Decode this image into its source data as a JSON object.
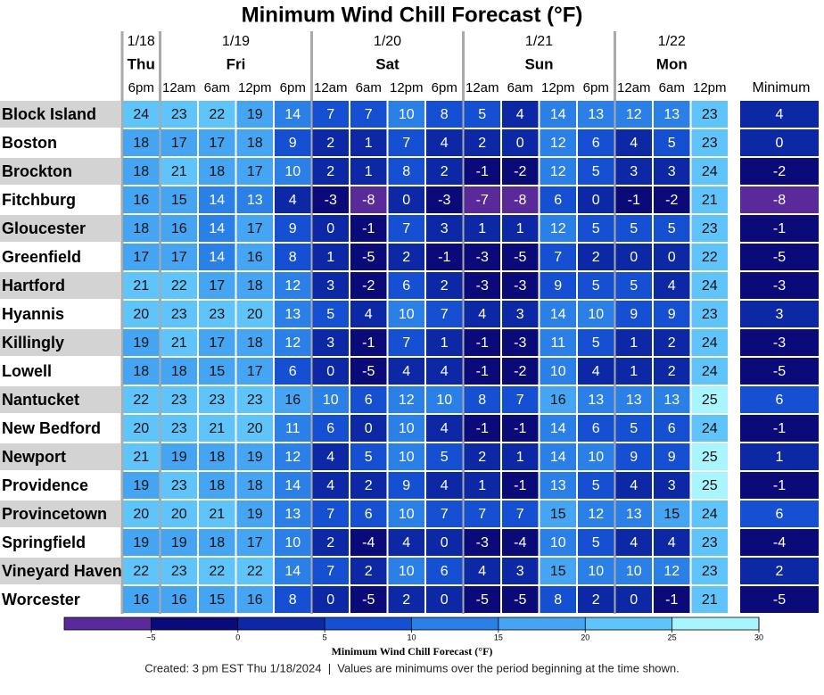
{
  "chart_data": {
    "type": "heatmap",
    "title": "Minimum Wind Chill Forecast (°F)",
    "groups": [
      {
        "date": "1/18",
        "day": "Thu",
        "times": [
          "6pm"
        ]
      },
      {
        "date": "1/19",
        "day": "Fri",
        "times": [
          "12am",
          "6am",
          "12pm",
          "6pm"
        ]
      },
      {
        "date": "1/20",
        "day": "Sat",
        "times": [
          "12am",
          "6am",
          "12pm",
          "6pm"
        ]
      },
      {
        "date": "1/21",
        "day": "Sun",
        "times": [
          "12am",
          "6am",
          "12pm",
          "6pm"
        ]
      },
      {
        "date": "1/22",
        "day": "Mon",
        "times": [
          "12am",
          "6am",
          "12pm"
        ]
      }
    ],
    "minimum_header": "Minimum",
    "rows": [
      {
        "name": "Block Island",
        "values": [
          24,
          23,
          22,
          19,
          14,
          7,
          7,
          10,
          8,
          5,
          4,
          14,
          13,
          12,
          13,
          23
        ],
        "minimum": 4
      },
      {
        "name": "Boston",
        "values": [
          18,
          17,
          17,
          18,
          9,
          2,
          1,
          7,
          4,
          2,
          0,
          12,
          6,
          4,
          5,
          23
        ],
        "minimum": 0
      },
      {
        "name": "Brockton",
        "values": [
          18,
          21,
          18,
          17,
          10,
          2,
          1,
          8,
          2,
          -1,
          -2,
          12,
          5,
          3,
          3,
          24
        ],
        "minimum": -2
      },
      {
        "name": "Fitchburg",
        "values": [
          16,
          15,
          14,
          13,
          4,
          -3,
          -8,
          0,
          -3,
          -7,
          -8,
          6,
          0,
          -1,
          -2,
          21
        ],
        "minimum": -8
      },
      {
        "name": "Gloucester",
        "values": [
          18,
          16,
          14,
          17,
          9,
          0,
          -1,
          7,
          3,
          1,
          1,
          12,
          5,
          5,
          5,
          23
        ],
        "minimum": -1
      },
      {
        "name": "Greenfield",
        "values": [
          17,
          17,
          14,
          16,
          8,
          1,
          -5,
          2,
          -1,
          -3,
          -5,
          7,
          2,
          0,
          0,
          22
        ],
        "minimum": -5
      },
      {
        "name": "Hartford",
        "values": [
          21,
          22,
          17,
          18,
          12,
          3,
          -2,
          6,
          2,
          -3,
          -3,
          9,
          5,
          5,
          4,
          24
        ],
        "minimum": -3
      },
      {
        "name": "Hyannis",
        "values": [
          20,
          23,
          23,
          20,
          13,
          5,
          4,
          10,
          7,
          4,
          3,
          14,
          10,
          9,
          9,
          23
        ],
        "minimum": 3
      },
      {
        "name": "Killingly",
        "values": [
          19,
          21,
          17,
          18,
          12,
          3,
          -1,
          7,
          1,
          -1,
          -3,
          11,
          5,
          1,
          2,
          24
        ],
        "minimum": -3
      },
      {
        "name": "Lowell",
        "values": [
          18,
          18,
          15,
          17,
          6,
          0,
          -5,
          4,
          4,
          -1,
          -2,
          10,
          4,
          1,
          2,
          24
        ],
        "minimum": -5
      },
      {
        "name": "Nantucket",
        "values": [
          22,
          23,
          23,
          23,
          16,
          10,
          6,
          12,
          10,
          8,
          7,
          16,
          13,
          13,
          13,
          25
        ],
        "minimum": 6
      },
      {
        "name": "New Bedford",
        "values": [
          20,
          23,
          21,
          20,
          11,
          6,
          0,
          10,
          4,
          -1,
          -1,
          14,
          6,
          5,
          6,
          24
        ],
        "minimum": -1
      },
      {
        "name": "Newport",
        "values": [
          21,
          19,
          18,
          19,
          12,
          4,
          5,
          10,
          5,
          2,
          1,
          14,
          10,
          9,
          9,
          25
        ],
        "minimum": 1
      },
      {
        "name": "Providence",
        "values": [
          19,
          23,
          18,
          18,
          14,
          4,
          2,
          9,
          4,
          1,
          -1,
          13,
          5,
          4,
          3,
          25
        ],
        "minimum": -1
      },
      {
        "name": "Provincetown",
        "values": [
          20,
          20,
          21,
          19,
          13,
          7,
          6,
          10,
          7,
          7,
          7,
          15,
          12,
          13,
          15,
          24
        ],
        "minimum": 6
      },
      {
        "name": "Springfield",
        "values": [
          19,
          19,
          18,
          17,
          10,
          2,
          -4,
          4,
          0,
          -3,
          -4,
          10,
          5,
          4,
          4,
          23
        ],
        "minimum": -4
      },
      {
        "name": "Vineyard Haven",
        "values": [
          22,
          23,
          22,
          22,
          14,
          7,
          2,
          10,
          6,
          4,
          3,
          15,
          10,
          10,
          12,
          23
        ],
        "minimum": 2
      },
      {
        "name": "Worcester",
        "values": [
          16,
          16,
          15,
          16,
          8,
          0,
          -5,
          2,
          0,
          -5,
          -5,
          8,
          2,
          0,
          -1,
          21
        ],
        "minimum": -5
      }
    ],
    "colorbar": {
      "label": "Minimum Wind Chill Forecast (°F)",
      "ticks": [
        {
          "value": -5,
          "label": "−5"
        },
        0,
        5,
        10,
        15,
        20,
        25,
        30
      ],
      "colors": [
        "#5b2a9a",
        "#0a0a78",
        "#0c28a4",
        "#1650d2",
        "#2b80e8",
        "#45a5f2",
        "#5ec4fa",
        "#a8f5ff"
      ]
    },
    "footer": "Created: 3 pm EST Thu 1/18/2024  |  Values are minimums over the period beginning at the time shown."
  }
}
